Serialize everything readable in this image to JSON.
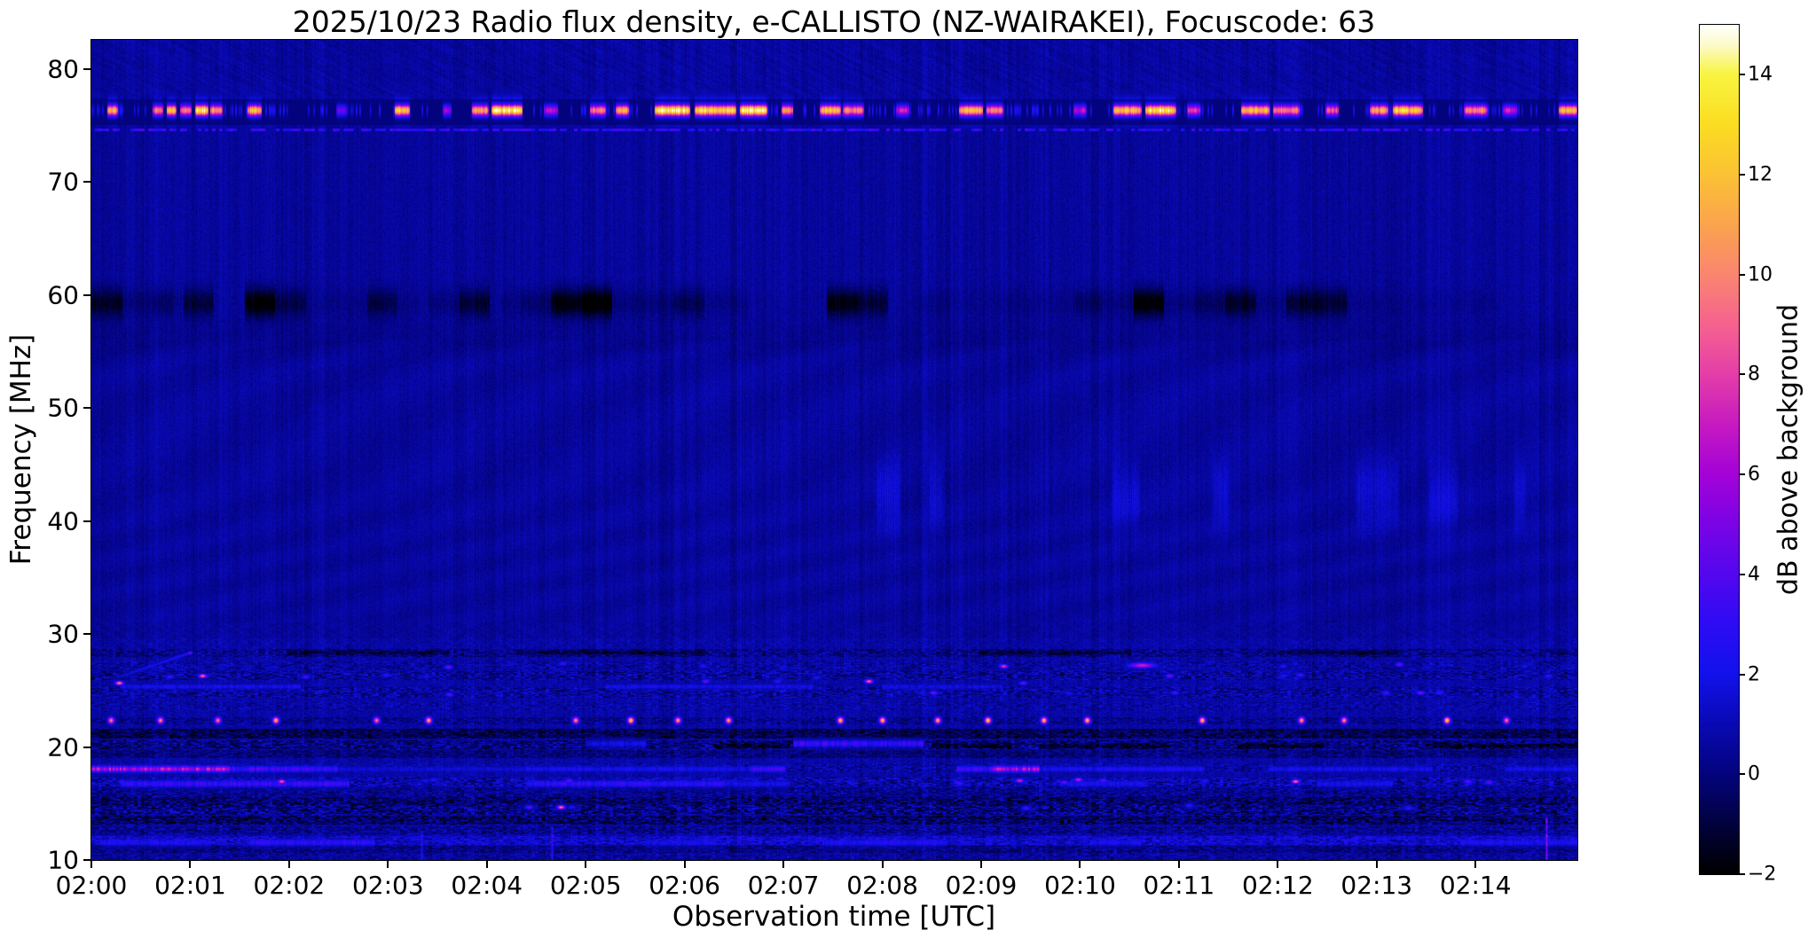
{
  "chart_data": {
    "type": "heatmap",
    "title": "2025/10/23  Radio flux density, e-CALLISTO (NZ-WAIRAKEI), Focuscode: 63",
    "xlabel": "Observation time [UTC]",
    "ylabel": "Frequency [MHz]",
    "x_tick_labels": [
      "02:00",
      "02:01",
      "02:02",
      "02:03",
      "02:04",
      "02:05",
      "02:06",
      "02:07",
      "02:08",
      "02:09",
      "02:10",
      "02:11",
      "02:12",
      "02:13",
      "02:14"
    ],
    "x_tick_minutes": [
      0,
      1,
      2,
      3,
      4,
      5,
      6,
      7,
      8,
      9,
      10,
      11,
      12,
      13,
      14
    ],
    "x_range_minutes": [
      0,
      15.03
    ],
    "y_ticks": [
      80,
      70,
      60,
      50,
      40,
      30,
      20,
      10
    ],
    "y_range_mhz": [
      10,
      82.59
    ],
    "grid": false,
    "colorbar": {
      "label": "dB above background",
      "ticks": [
        14,
        12,
        10,
        8,
        6,
        4,
        2,
        0,
        -2
      ],
      "tick_labels": [
        "14",
        "12",
        "10",
        "8",
        "6",
        "4",
        "2",
        "0",
        "−2"
      ],
      "range": [
        -2,
        15
      ],
      "stops": [
        [
          -2,
          "#000000"
        ],
        [
          -1,
          "#02023f"
        ],
        [
          0,
          "#04047f"
        ],
        [
          1,
          "#0a0ab5"
        ],
        [
          2,
          "#1212ec"
        ],
        [
          3,
          "#2e0cf5"
        ],
        [
          4,
          "#5407ee"
        ],
        [
          5,
          "#7b04e6"
        ],
        [
          6,
          "#a402d8"
        ],
        [
          7,
          "#c71bc1"
        ],
        [
          8,
          "#e43fa9"
        ],
        [
          9,
          "#f6638f"
        ],
        [
          10,
          "#fa8670"
        ],
        [
          11,
          "#fba44e"
        ],
        [
          12,
          "#fcc236"
        ],
        [
          13,
          "#fbdd22"
        ],
        [
          14,
          "#f9f441"
        ],
        [
          14.6,
          "#fdfbca"
        ],
        [
          15,
          "#ffffff"
        ]
      ]
    },
    "spectrogram": {
      "noise": {
        "base": 0.55,
        "pixel": 0.9,
        "col": 0.55,
        "col_coarse": 0.35,
        "low_extra": 0.8,
        "low_f": 29.6
      },
      "rfi_band": {
        "f0": 75.05,
        "f1": 77.35,
        "floor": -1.85,
        "core_f": 76.35,
        "core_sigma": 0.5,
        "glow_f": 76.3,
        "glow_sigma": 1.15,
        "glow_lo": 73.8,
        "glow_hi": 79.0,
        "underline_f": 74.65,
        "underline_h": 0.12,
        "underline_val": 2.4,
        "fill_chance": 0.32,
        "fill_val": 2.6,
        "bursts": [
          [
            0.16,
            0.27,
            12
          ],
          [
            0.62,
            0.73,
            9.5
          ],
          [
            0.76,
            0.86,
            13
          ],
          [
            0.9,
            1.01,
            10
          ],
          [
            1.05,
            1.18,
            14
          ],
          [
            1.2,
            1.33,
            11
          ],
          [
            1.58,
            1.72,
            12
          ],
          [
            2.48,
            2.58,
            5
          ],
          [
            3.07,
            3.22,
            13
          ],
          [
            3.55,
            3.64,
            6
          ],
          [
            3.85,
            4.02,
            11
          ],
          [
            4.05,
            4.36,
            14
          ],
          [
            4.58,
            4.72,
            6.5
          ],
          [
            5.04,
            5.2,
            10
          ],
          [
            5.3,
            5.44,
            12
          ],
          [
            5.7,
            6.06,
            14
          ],
          [
            6.1,
            6.52,
            13
          ],
          [
            6.56,
            6.84,
            14.5
          ],
          [
            6.98,
            7.1,
            11
          ],
          [
            7.37,
            7.58,
            12
          ],
          [
            7.6,
            7.82,
            10
          ],
          [
            8.14,
            8.27,
            7
          ],
          [
            8.78,
            9.02,
            12
          ],
          [
            9.05,
            9.22,
            10
          ],
          [
            9.93,
            10.07,
            6.5
          ],
          [
            10.34,
            10.62,
            12
          ],
          [
            10.66,
            10.97,
            13.5
          ],
          [
            11.08,
            11.22,
            8
          ],
          [
            11.63,
            11.92,
            12
          ],
          [
            11.95,
            12.22,
            10
          ],
          [
            12.48,
            12.62,
            9
          ],
          [
            12.93,
            13.12,
            11
          ],
          [
            13.16,
            13.47,
            12.5
          ],
          [
            13.88,
            14.12,
            10
          ],
          [
            14.28,
            14.42,
            7
          ],
          [
            14.84,
            15.03,
            12
          ]
        ]
      },
      "dark_blocks": {
        "f0": 56.0,
        "f1": 61.6,
        "f_center": 59.3,
        "f_sigma": 1.25,
        "block_minutes": 0.31,
        "threshold": 0.38,
        "strength": 2.7,
        "extra_band_f": 56.3,
        "extra_sigma": 1.6,
        "extra": 0.28
      },
      "bright_cols": {
        "f_center": 42.2,
        "f_sigma": 3.1,
        "f0": 35.5,
        "f1": 48.5,
        "amp": 1.05,
        "patches": [
          [
            7.92,
            8.2
          ],
          [
            8.45,
            8.63
          ],
          [
            10.3,
            10.62
          ],
          [
            11.33,
            11.53
          ],
          [
            12.78,
            13.24
          ],
          [
            13.52,
            13.84
          ],
          [
            14.38,
            14.52
          ]
        ]
      },
      "low_bands": [
        [
          28.0,
          28.7,
          0.7,
          1.0
        ],
        [
          26.9,
          27.6,
          0.25,
          0.9
        ],
        [
          25.9,
          26.7,
          0.5,
          1.4
        ],
        [
          24.4,
          25.3,
          0.4,
          1.3
        ],
        [
          23.3,
          24.0,
          0.2,
          0.8
        ],
        [
          22.0,
          22.65,
          0.6,
          0.8
        ],
        [
          20.75,
          21.65,
          1.6,
          1.2
        ],
        [
          19.8,
          20.6,
          0.9,
          1.5
        ],
        [
          19.0,
          19.75,
          0.9,
          0.8
        ],
        [
          17.85,
          18.55,
          0.3,
          1.0
        ],
        [
          16.5,
          17.3,
          0.2,
          1.6
        ],
        [
          15.6,
          16.4,
          0.6,
          1.0
        ],
        [
          14.9,
          15.55,
          1.3,
          1.5
        ],
        [
          14.0,
          14.85,
          1.0,
          1.8
        ],
        [
          13.1,
          13.95,
          1.4,
          1.6
        ],
        [
          12.3,
          13.0,
          0.6,
          1.1
        ],
        [
          11.3,
          12.15,
          -0.5,
          1.3
        ],
        [
          10.6,
          11.25,
          0.8,
          1.0
        ],
        [
          10.0,
          10.55,
          0.3,
          0.8
        ]
      ],
      "lines": [
        {
          "f": 18.05,
          "h": 0.28,
          "segments": [
            [
              0.0,
              1.4,
              6.2
            ],
            [
              1.4,
              2.5,
              3.6
            ],
            [
              2.5,
              4.4,
              1.5
            ],
            [
              4.4,
              6.6,
              2.2
            ],
            [
              6.65,
              7.0,
              3.4
            ],
            [
              8.75,
              9.12,
              3.4
            ],
            [
              9.12,
              9.6,
              6.0
            ],
            [
              9.6,
              11.25,
              2.3
            ],
            [
              11.9,
              13.55,
              2.1
            ],
            [
              14.3,
              15.03,
              2.0
            ]
          ]
        },
        {
          "f": 16.75,
          "h": 0.3,
          "segments": [
            [
              0.3,
              2.6,
              3.4
            ],
            [
              4.4,
              6.4,
              3.0
            ],
            [
              6.4,
              7.05,
              2.0
            ],
            [
              9.8,
              10.65,
              2.3
            ],
            [
              12.4,
              13.15,
              2.1
            ]
          ]
        },
        {
          "f": 20.3,
          "h": 0.3,
          "segments": [
            [
              5.0,
              5.6,
              2.0
            ],
            [
              7.1,
              8.4,
              3.4
            ]
          ]
        },
        {
          "f": 11.55,
          "h": 0.3,
          "segments": [
            [
              0.1,
              1.2,
              2.4
            ],
            [
              1.6,
              2.85,
              3.0
            ],
            [
              5.6,
              6.3,
              2.0
            ],
            [
              7.4,
              8.65,
              2.5
            ],
            [
              10.1,
              10.6,
              2.1
            ],
            [
              13.85,
              15.03,
              2.3
            ]
          ]
        },
        {
          "f": 25.35,
          "h": 0.22,
          "segments": [
            [
              0.3,
              2.1,
              2.2
            ],
            [
              5.2,
              7.3,
              2.0
            ],
            [
              8.0,
              9.2,
              1.8
            ]
          ]
        }
      ],
      "dark_lines": [
        {
          "f": 20.1,
          "h": 0.22,
          "segments": [
            [
              6.3,
              7.05,
              -1.6
            ],
            [
              8.5,
              9.3,
              -1.7
            ],
            [
              9.6,
              10.9,
              -1.7
            ],
            [
              11.6,
              12.45,
              -1.7
            ],
            [
              13.5,
              15.03,
              -1.8
            ]
          ]
        },
        {
          "f": 28.35,
          "h": 0.2,
          "segments": [
            [
              2.0,
              3.6,
              -1.2
            ],
            [
              4.3,
              6.2,
              -1.3
            ],
            [
              9.0,
              10.5,
              -1.2
            ],
            [
              12.0,
              13.2,
              -1.2
            ]
          ]
        }
      ],
      "dot_row": {
        "f": 22.35,
        "sigma": 0.3,
        "start": 0.25,
        "period": 0.52,
        "jitter": 0.15,
        "width": 0.032,
        "val_base": 9.5,
        "val_rand": 3.5,
        "skip": 0.22
      },
      "scatter_dots": {
        "rows": [
          27.25,
          26.3,
          25.8,
          24.85,
          17.0,
          14.7
        ],
        "count": 52,
        "val_base": 2.2,
        "val_rand": 3.2,
        "hot_chance": 0.12,
        "hot_val": 7.5
      },
      "blob": {
        "t": 10.62,
        "f": 27.3,
        "sig_t": 0.13,
        "sig_f": 0.22,
        "val": 7.4
      },
      "v_streaks": [
        [
          3.34,
          10.0,
          12.4,
          2.6
        ],
        [
          4.66,
          10.0,
          12.9,
          3.2
        ],
        [
          14.72,
          10.0,
          13.8,
          5.5
        ]
      ],
      "diag_streak": {
        "t0": 0.3,
        "f0": 26.3,
        "t1": 1.0,
        "f1": 28.4,
        "val": 2.8,
        "tip_val": 6.0
      },
      "hatch": {
        "upper_amp": 0.5,
        "low_amp": 0.3,
        "mid_amp": 0.14
      }
    }
  }
}
